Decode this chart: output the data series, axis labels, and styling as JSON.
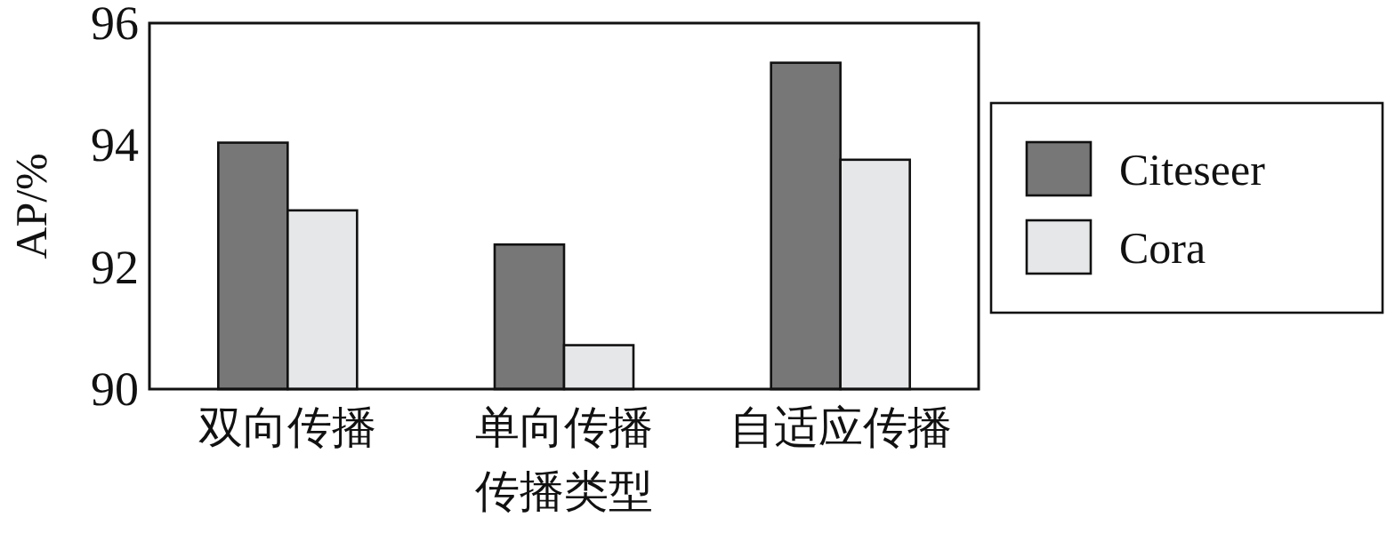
{
  "chart_data": {
    "type": "bar",
    "xlabel": "传播类型",
    "ylabel": "AP/%",
    "categories": [
      "双向传播",
      "单向传播",
      "自适应传播"
    ],
    "series": [
      {
        "name": "Citeseer",
        "color": "#777777",
        "values": [
          94.04,
          92.37,
          95.35
        ]
      },
      {
        "name": "Cora",
        "color": "#e6e7e9",
        "values": [
          92.93,
          90.72,
          93.76
        ]
      }
    ],
    "ylim": [
      90,
      96
    ],
    "yticks": [
      90,
      92,
      94,
      96
    ],
    "legend": "right"
  }
}
